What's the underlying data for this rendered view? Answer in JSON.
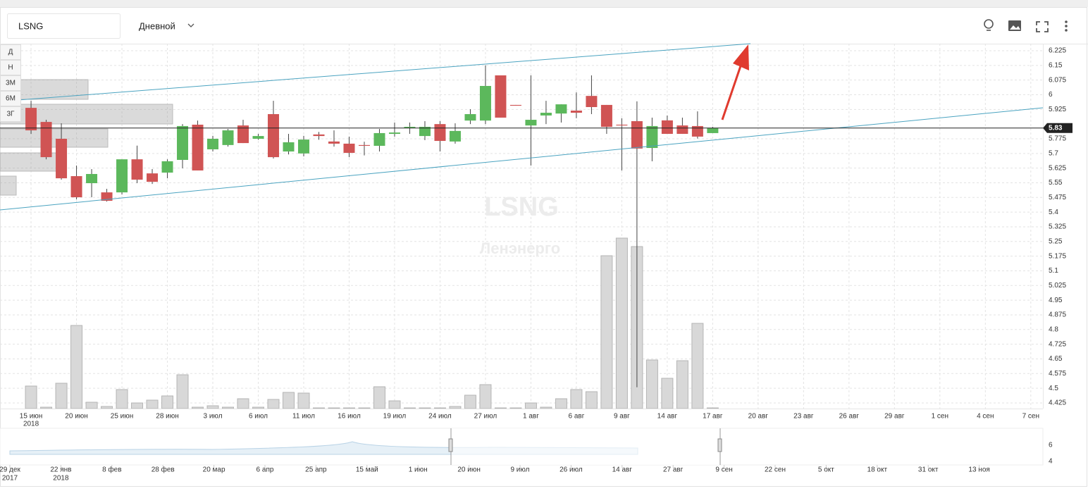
{
  "toolbar": {
    "symbol": "LSNG",
    "interval": "Дневной",
    "ranges": [
      "Д",
      "Н",
      "3М",
      "6М",
      "3Г"
    ]
  },
  "chart_data": {
    "type": "candlestick",
    "x": [
      0,
      1,
      2,
      3,
      4,
      5,
      6,
      7,
      8,
      9,
      10,
      11,
      12,
      13,
      14,
      15,
      16,
      17,
      18,
      19,
      20,
      21,
      22,
      23,
      24,
      25,
      26,
      27,
      28,
      29,
      30,
      31,
      32,
      33,
      34,
      35,
      36,
      37,
      38,
      39,
      40,
      41,
      42,
      43,
      44,
      45
    ],
    "open": [
      5.933,
      5.861,
      5.775,
      5.584,
      5.548,
      5.501,
      5.501,
      5.67,
      5.598,
      5.602,
      5.667,
      5.847,
      5.721,
      5.743,
      5.843,
      5.775,
      5.901,
      5.71,
      5.7,
      5.797,
      5.761,
      5.75,
      5.743,
      5.739,
      5.8,
      5.829,
      5.789,
      5.85,
      5.761,
      5.868,
      5.868,
      6.099,
      5.948,
      5.843,
      5.894,
      5.904,
      5.919,
      5.994,
      5.948,
      5.847,
      5.865,
      5.728,
      5.869,
      5.843,
      5.84,
      5.804
    ],
    "high": [
      5.969,
      5.872,
      5.854,
      5.638,
      5.62,
      5.519,
      5.67,
      5.74,
      5.62,
      5.67,
      5.85,
      5.868,
      5.79,
      5.825,
      5.872,
      5.8,
      5.969,
      5.8,
      5.79,
      5.81,
      5.818,
      5.786,
      5.76,
      5.825,
      5.858,
      5.858,
      5.865,
      5.865,
      5.854,
      5.926,
      6.15,
      6.099,
      5.948,
      6.099,
      5.969,
      5.951,
      6.012,
      6.099,
      5.948,
      5.88,
      5.966,
      5.883,
      5.894,
      5.883,
      5.915,
      5.836
    ],
    "low": [
      5.8,
      5.67,
      5.566,
      5.465,
      5.476,
      5.454,
      5.49,
      5.548,
      5.544,
      5.573,
      5.624,
      5.613,
      5.71,
      5.735,
      5.753,
      5.77,
      5.674,
      5.695,
      5.685,
      5.77,
      5.735,
      5.681,
      5.69,
      5.71,
      5.786,
      5.8,
      5.768,
      5.71,
      5.75,
      5.85,
      5.85,
      5.883,
      5.944,
      5.638,
      5.85,
      5.858,
      5.88,
      5.901,
      5.8,
      5.613,
      4.505,
      5.66,
      5.8,
      5.8,
      5.776,
      5.804
    ],
    "close": [
      5.818,
      5.681,
      5.573,
      5.476,
      5.595,
      5.458,
      5.67,
      5.566,
      5.555,
      5.66,
      5.84,
      5.613,
      5.775,
      5.818,
      5.753,
      5.789,
      5.681,
      5.757,
      5.771,
      5.789,
      5.75,
      5.703,
      5.739,
      5.804,
      5.807,
      5.836,
      5.836,
      5.764,
      5.815,
      5.901,
      6.045,
      5.883,
      5.944,
      5.872,
      5.908,
      5.951,
      5.908,
      5.937,
      5.836,
      5.843,
      5.725,
      5.84,
      5.8,
      5.8,
      5.786,
      5.829
    ],
    "volume": [
      32,
      2,
      36,
      118,
      9,
      3,
      27,
      8,
      12,
      18,
      48,
      2,
      4,
      2,
      14,
      2,
      13,
      23,
      22,
      1,
      1,
      1,
      1,
      31,
      11,
      1,
      1,
      1,
      3,
      19,
      34,
      1,
      1,
      8,
      2,
      14,
      27,
      24,
      217,
      242,
      230,
      69,
      43,
      68,
      121,
      1
    ],
    "xlim": [
      -2.05,
      66.8
    ],
    "ylim": [
      4.396,
      6.261
    ],
    "volume_lim": [
      0,
      518
    ],
    "xticks": [
      {
        "value": 0,
        "label": "15 июн"
      },
      {
        "value": 3,
        "label": "20 июн"
      },
      {
        "value": 6,
        "label": "25 июн"
      },
      {
        "value": 9,
        "label": "28 июн"
      },
      {
        "value": 12,
        "label": "3 июл"
      },
      {
        "value": 15,
        "label": "6 июл"
      },
      {
        "value": 18,
        "label": "11 июл"
      },
      {
        "value": 21,
        "label": "16 июл"
      },
      {
        "value": 24,
        "label": "19 июл"
      },
      {
        "value": 27,
        "label": "24 июл"
      },
      {
        "value": 30,
        "label": "27 июл"
      },
      {
        "value": 33,
        "label": "1 авг"
      },
      {
        "value": 36,
        "label": "6 авг"
      },
      {
        "value": 39,
        "label": "9 авг"
      },
      {
        "value": 42,
        "label": "14 авг"
      },
      {
        "value": 45,
        "label": "17 авг"
      },
      {
        "value": 48,
        "label": "20 авг"
      },
      {
        "value": 51,
        "label": "23 авг"
      },
      {
        "value": 54,
        "label": "26 авг"
      },
      {
        "value": 57,
        "label": "29 авг"
      },
      {
        "value": 60,
        "label": "1 сен"
      },
      {
        "value": 63,
        "label": "4 сен"
      },
      {
        "value": 66,
        "label": "7 сен"
      }
    ],
    "year_label": "2018",
    "yticks": [
      6.225,
      6.15,
      6.075,
      6,
      5.925,
      5.775,
      5.7,
      5.625,
      5.55,
      5.475,
      5.4,
      5.325,
      5.25,
      5.175,
      5.1,
      5.025,
      4.95,
      4.875,
      4.8,
      4.725,
      4.65,
      4.575,
      4.5,
      4.425
    ],
    "grid": true,
    "up_color": "#5cb85c",
    "down_color": "#d05454",
    "wick_color": "#444444",
    "volume_color": "#d8d8d8",
    "last_price": 5.83,
    "watermark": "LSNG",
    "watermark_subtitle": "Ленэнерго"
  },
  "navigator": {
    "labels": [
      "29 дек",
      "22 янв",
      "8 фев",
      "28 фев",
      "20 мар",
      "6 апр",
      "25 апр",
      "15 май",
      "1 июн",
      "20 июн",
      "9 июл",
      "26 июл",
      "14 авг",
      "27 авг",
      "9 сен",
      "22 сен",
      "5 окт",
      "18 окт",
      "31 окт",
      "13 ноя"
    ],
    "years": [
      "2017",
      "2018"
    ],
    "ylim": [
      3.57,
      8.09
    ],
    "yticks": [
      6,
      4
    ]
  }
}
